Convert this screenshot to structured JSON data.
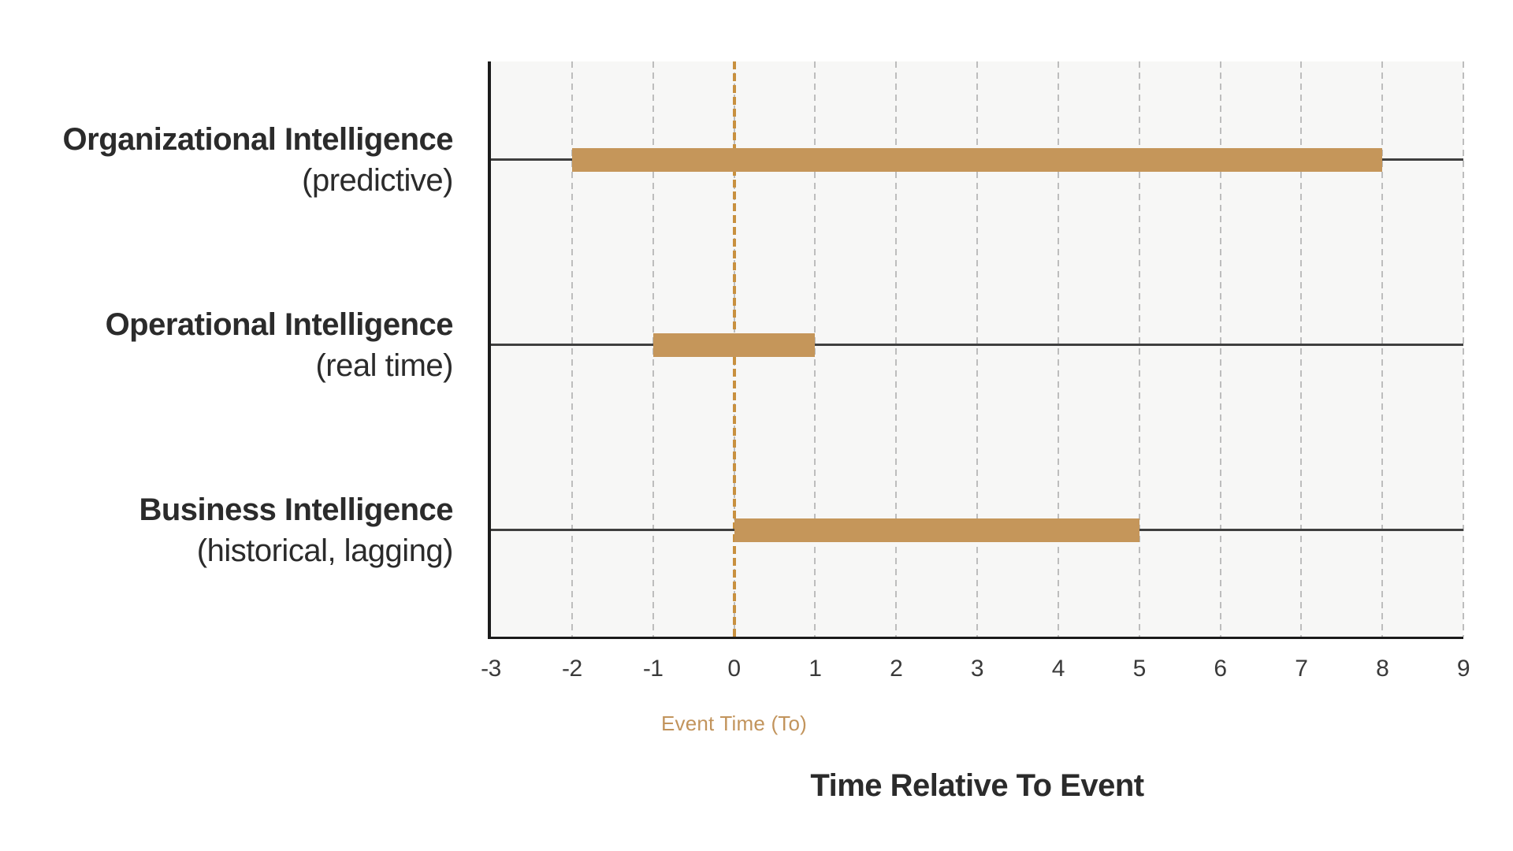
{
  "chart_data": {
    "type": "bar",
    "orientation": "horizontal",
    "title": "Time Relative To Event",
    "xlabel": "Event Time (To)",
    "xlim": [
      -3,
      9
    ],
    "xticks": [
      -3,
      -2,
      -1,
      0,
      1,
      2,
      3,
      4,
      5,
      6,
      7,
      8,
      9
    ],
    "grid": "vertical-dashed",
    "legend": "none",
    "zero_line": {
      "x": 0,
      "style": "dashed",
      "color": "#C8903F"
    },
    "categories": [
      {
        "name": "Organizational Intelligence",
        "qualifier": "(predictive)",
        "start": -2,
        "end": 8
      },
      {
        "name": "Operational Intelligence",
        "qualifier": "(real time)",
        "start": -1,
        "end": 1
      },
      {
        "name": "Business Intelligence",
        "qualifier": "(historical, lagging)",
        "start": 0,
        "end": 5
      }
    ],
    "colors": {
      "bar": "#C5965A",
      "plot_background": "#F7F7F6",
      "page_background": "#FFFFFF",
      "gridline": "#BDBDBD",
      "row_line": "#3F3F3F",
      "axis_line": "#1B1B1B",
      "tick_text": "#3A3A3A",
      "category_text": "#2B2B2B",
      "xlabel_text": "#C2945C",
      "title_text": "#2B2B2B"
    }
  }
}
